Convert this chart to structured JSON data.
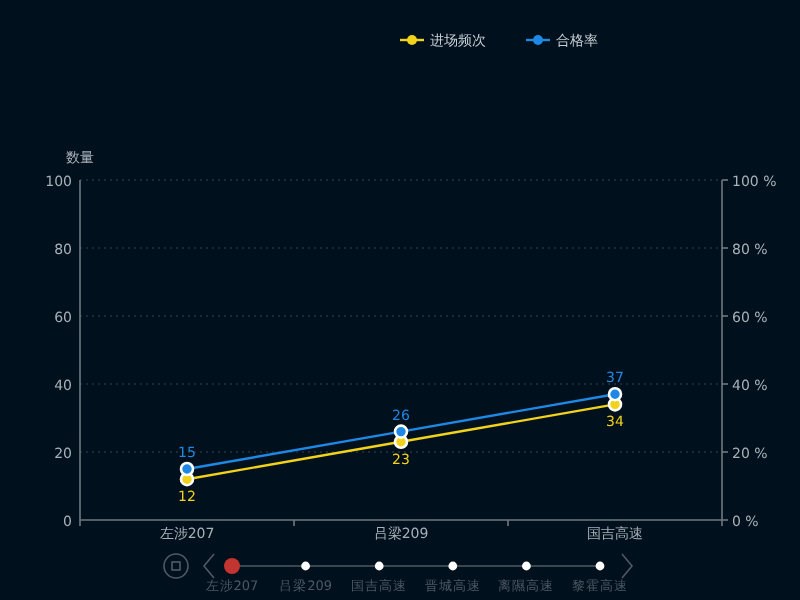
{
  "chart_data": {
    "type": "line",
    "ylabel": "数量",
    "categories": [
      "左涉207",
      "吕梁209",
      "国吉高速"
    ],
    "series": [
      {
        "name": "进场频次",
        "color": "#f2d21b",
        "values": [
          12,
          23,
          34
        ]
      },
      {
        "name": "合格率",
        "color": "#1e88e5",
        "values": [
          15,
          26,
          37
        ]
      }
    ],
    "ylim": [
      0,
      100
    ],
    "yticks": [
      0,
      20,
      40,
      60,
      80,
      100
    ],
    "y2lim": [
      0,
      100
    ],
    "y2ticks": [
      {
        "value": 0,
        "label": "0 %"
      },
      {
        "value": 20,
        "label": "20 %"
      },
      {
        "value": 40,
        "label": "40 %"
      },
      {
        "value": 60,
        "label": "60 %"
      },
      {
        "value": 80,
        "label": "80 %"
      },
      {
        "value": 100,
        "label": "100 %"
      }
    ],
    "grid": "y",
    "legend": "top",
    "marker": "circle",
    "data_labels": true,
    "annotations": [
      "左涉207",
      "吕梁209",
      "国吉高速",
      "晋城高速",
      "离隰高速",
      "黎霍高速"
    ]
  }
}
